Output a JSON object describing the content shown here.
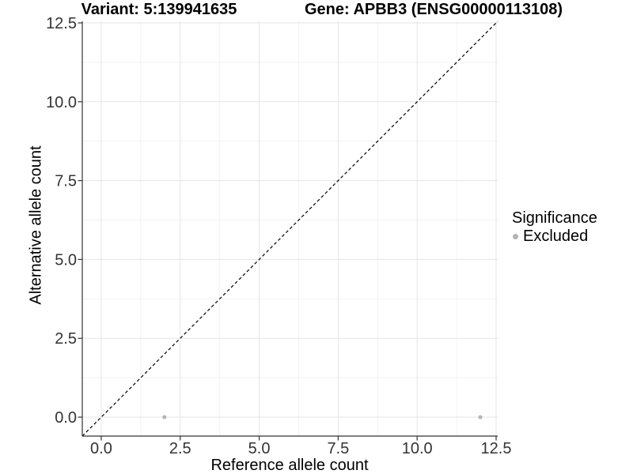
{
  "chart_data": {
    "type": "scatter",
    "title_left": "Variant: 5:139941635",
    "title_right": "Gene: APBB3 (ENSG00000113108)",
    "xlabel": "Reference allele count",
    "ylabel": "Alternative allele count",
    "xlim": [
      -0.6,
      12.55
    ],
    "ylim": [
      -0.6,
      12.55
    ],
    "major_ticks": [
      0,
      2.5,
      5,
      7.5,
      10,
      12.5
    ],
    "tick_labels": [
      "0.0",
      "2.5",
      "5.0",
      "7.5",
      "10.0",
      "12.5"
    ],
    "minor_ticks": [
      1.25,
      3.75,
      6.25,
      8.75,
      11.25
    ],
    "grid": "major and minor gridlines on white panel",
    "reference_line": {
      "type": "identity y=x",
      "style": "dashed",
      "color": "#000000"
    },
    "series": [
      {
        "name": "Excluded",
        "color": "#b4b4b4",
        "points": [
          [
            2,
            0
          ],
          [
            12,
            0
          ]
        ]
      }
    ],
    "legend": {
      "title": "Significance",
      "position": "right",
      "entries": [
        {
          "label": "Excluded",
          "color": "#b4b4b4"
        }
      ]
    }
  },
  "colors": {
    "background": "#ffffff",
    "axis_line": "#333333",
    "tick_mark": "#333333",
    "tick_label": "#333333",
    "grid_major": "#e5e5e5",
    "grid_minor": "#f2f2f2",
    "point": "#b4b4b4",
    "title_text": "#000000"
  }
}
